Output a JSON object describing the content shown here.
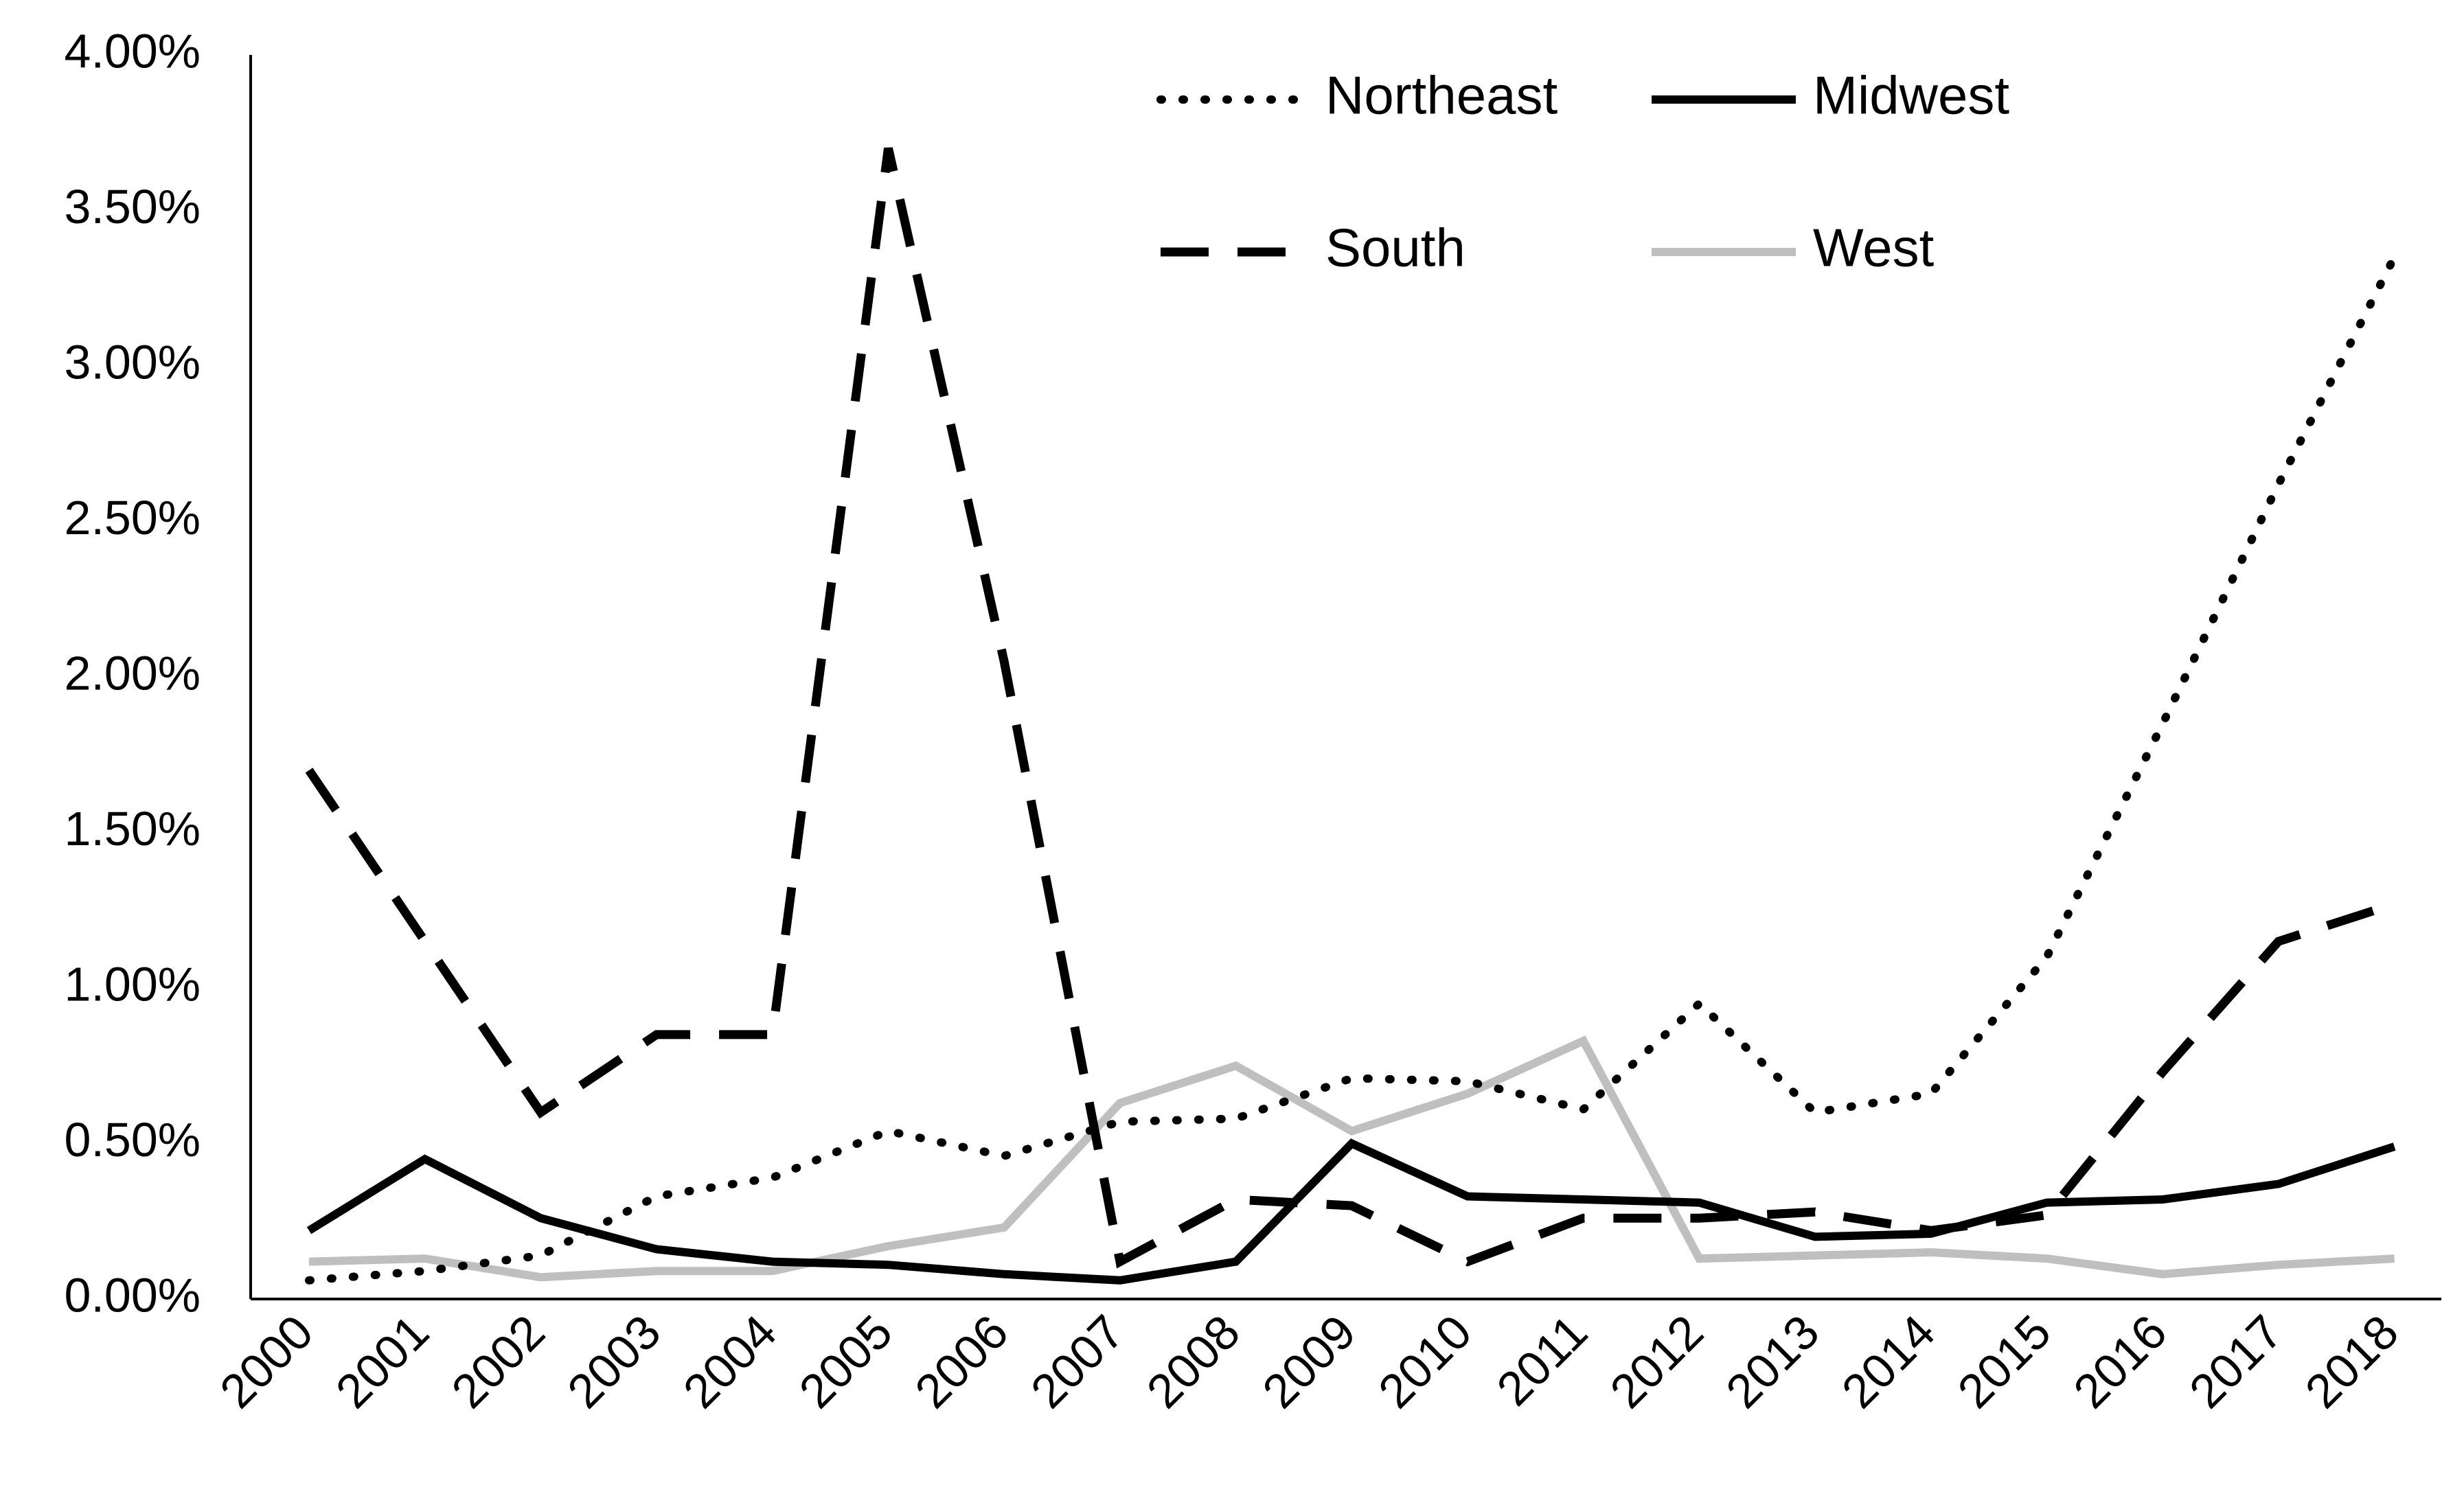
{
  "chart_data": {
    "type": "line",
    "title": "",
    "xlabel": "",
    "ylabel": "",
    "categories": [
      "2000",
      "2001",
      "2002",
      "2003",
      "2004",
      "2005",
      "2006",
      "2007",
      "2008",
      "2009",
      "2010",
      "2011",
      "2012",
      "2013",
      "2014",
      "2015",
      "2016",
      "2017",
      "2018"
    ],
    "ylim": [
      0,
      0.04
    ],
    "yticks": [
      "0.00%",
      "0.50%",
      "1.00%",
      "1.50%",
      "2.00%",
      "2.50%",
      "3.00%",
      "3.50%",
      "4.00%"
    ],
    "legend_position": "top-right",
    "grid": false,
    "series": [
      {
        "name": "Northeast",
        "style": "dotted",
        "color": "#000000",
        "values": [
          0.0006,
          0.0009,
          0.0014,
          0.0033,
          0.0039,
          0.0054,
          0.0046,
          0.0057,
          0.0058,
          0.0071,
          0.007,
          0.0061,
          0.0095,
          0.006,
          0.0066,
          0.011,
          0.0185,
          0.0262,
          0.0335
        ]
      },
      {
        "name": "Midwest",
        "style": "solid",
        "color": "#000000",
        "values": [
          0.0022,
          0.0045,
          0.0026,
          0.0016,
          0.0012,
          0.0011,
          0.0008,
          0.0006,
          0.0012,
          0.005,
          0.0033,
          0.0032,
          0.0031,
          0.002,
          0.0021,
          0.0031,
          0.0032,
          0.0037,
          0.0049
        ]
      },
      {
        "name": "South",
        "style": "dashed",
        "color": "#000000",
        "values": [
          0.017,
          0.0115,
          0.006,
          0.0085,
          0.0085,
          0.037,
          0.0205,
          0.0012,
          0.0032,
          0.003,
          0.0012,
          0.0026,
          0.0026,
          0.0028,
          0.0022,
          0.0027,
          0.0073,
          0.0115,
          0.0127
        ]
      },
      {
        "name": "West",
        "style": "solid",
        "color": "#bfbfbf",
        "values": [
          0.0012,
          0.0013,
          0.0007,
          0.0009,
          0.0009,
          0.0017,
          0.0023,
          0.0063,
          0.0075,
          0.0054,
          0.0066,
          0.0083,
          0.0013,
          0.0014,
          0.0015,
          0.0013,
          0.0008,
          0.0011,
          0.0013
        ]
      }
    ]
  }
}
